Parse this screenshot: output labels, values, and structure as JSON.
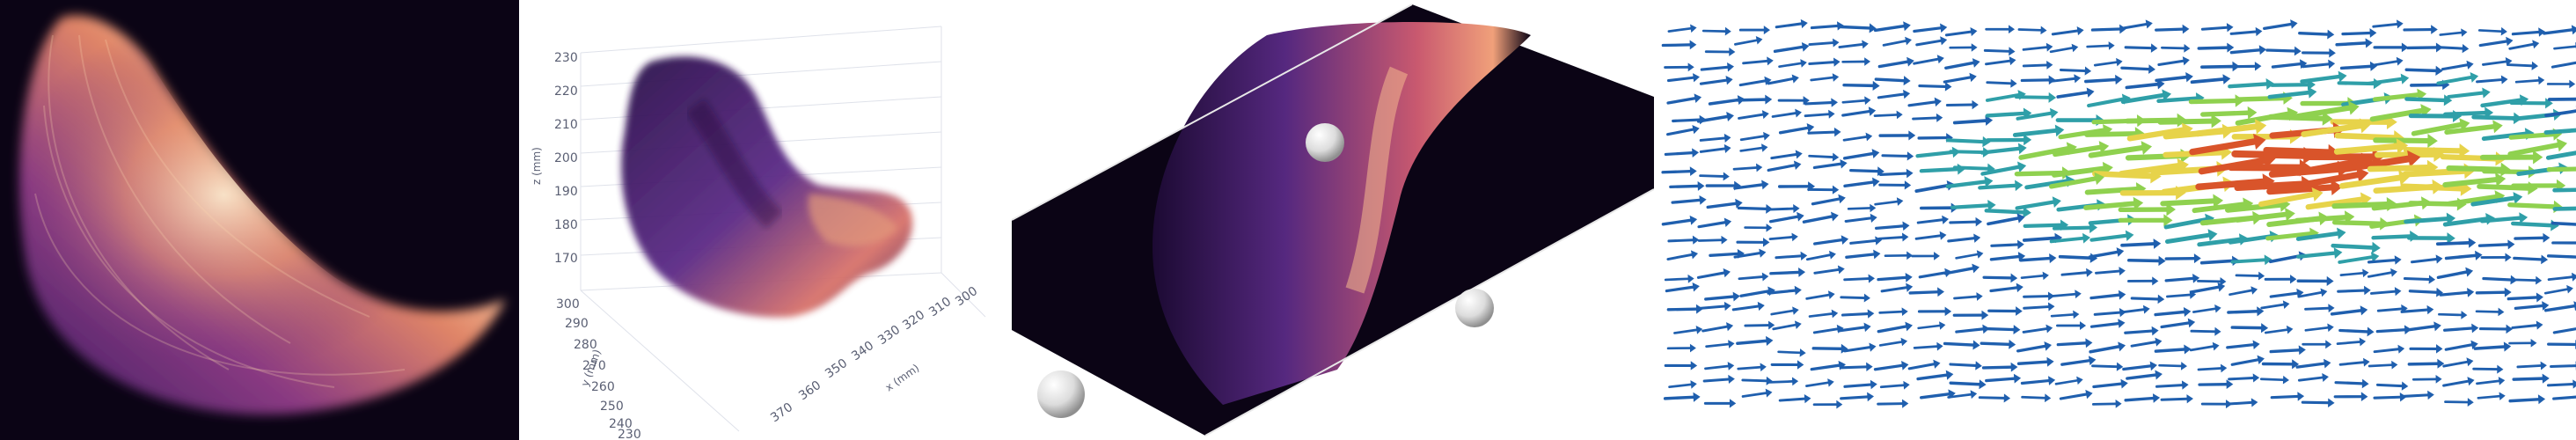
{
  "figure": {
    "panels": [
      {
        "id": "mip-projection"
      },
      {
        "id": "scatter-3d"
      },
      {
        "id": "volume-render"
      },
      {
        "id": "vector-field"
      }
    ]
  },
  "scatter3d": {
    "z_axis": {
      "label": "z (mm)",
      "ticks": [
        "230",
        "220",
        "210",
        "200",
        "190",
        "180",
        "170"
      ]
    },
    "y_axis": {
      "label": "y (mm)",
      "ticks": [
        "300",
        "290",
        "280",
        "270",
        "260",
        "250",
        "240",
        "230"
      ]
    },
    "x_axis": {
      "label": "x (mm)",
      "ticks": [
        "370",
        "360",
        "350",
        "340",
        "330",
        "320",
        "310",
        "300"
      ]
    }
  },
  "colors": {
    "magma_dark": "#0b0415",
    "magma_purple": "#5b2a86",
    "magma_orange": "#e4876b",
    "magma_light": "#fde1b9",
    "arrow_blue": "#1f5fae",
    "arrow_green": "#8fd14f",
    "arrow_yellow": "#e7d34a",
    "arrow_red": "#d9542a"
  }
}
